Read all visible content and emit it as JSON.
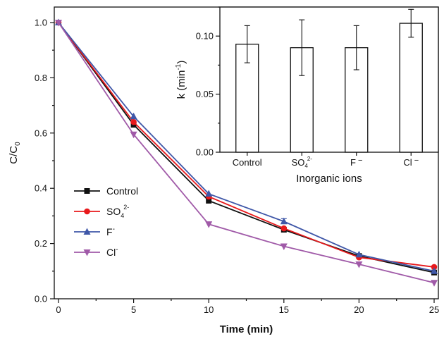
{
  "chart_data": [
    {
      "type": "line",
      "xlabel": "Time (min)",
      "ylabel": "C/C",
      "ylabel_sub": "0",
      "x": [
        0,
        5,
        10,
        15,
        20,
        25
      ],
      "xlim": [
        0,
        25
      ],
      "ylim": [
        0.0,
        1.0
      ],
      "xticks": [
        "0",
        "5",
        "10",
        "15",
        "20",
        "25"
      ],
      "yticks": [
        "0.0",
        "0.2",
        "0.4",
        "0.6",
        "0.8",
        "1.0"
      ],
      "legend_position": "lower-left",
      "series": [
        {
          "name": "Control",
          "name_sup": "",
          "marker": "square",
          "color": "#111111",
          "values": [
            1.0,
            0.63,
            0.355,
            0.25,
            0.155,
            0.095
          ]
        },
        {
          "name": "SO",
          "name_sub": "4",
          "name_sup": "2-",
          "marker": "circle",
          "color": "#e8191c",
          "values": [
            1.0,
            0.64,
            0.37,
            0.255,
            0.15,
            0.115
          ]
        },
        {
          "name": "F",
          "name_sup": "-",
          "marker": "triangle-up",
          "color": "#3f57a8",
          "values": [
            1.0,
            0.66,
            0.38,
            0.28,
            0.16,
            0.1
          ],
          "errors": [
            0,
            0,
            0,
            0.01,
            0,
            0
          ]
        },
        {
          "name": "Cl",
          "name_sup": "-",
          "marker": "triangle-down",
          "color": "#a05aa8",
          "values": [
            1.0,
            0.595,
            0.27,
            0.19,
            0.125,
            0.058
          ]
        }
      ]
    },
    {
      "type": "bar",
      "xlabel": "Inorganic ions",
      "ylabel": "k (min",
      "ylabel_sup": "-1",
      "ylabel_end": ")",
      "ylim": [
        0.0,
        0.125
      ],
      "yticks": [
        "0.00",
        "0.05",
        "0.10"
      ],
      "categories": [
        {
          "label": "Control",
          "sub": "",
          "sup": ""
        },
        {
          "label": "SO",
          "sub": "4",
          "sup": "2-"
        },
        {
          "label": "F",
          "sub": "",
          "sup": "−"
        },
        {
          "label": "Cl",
          "sub": "",
          "sup": "−"
        }
      ],
      "values": [
        0.093,
        0.09,
        0.09,
        0.111
      ],
      "errors": [
        0.016,
        0.024,
        0.019,
        0.012
      ]
    }
  ]
}
